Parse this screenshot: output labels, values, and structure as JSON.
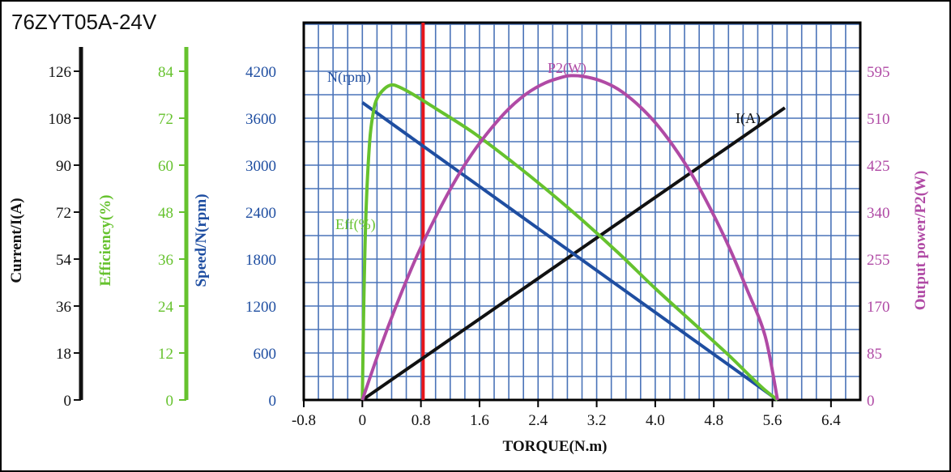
{
  "title": "76ZYT05A-24V",
  "colors": {
    "current": "#111111",
    "efficiency": "#66c22e",
    "speed": "#1f4ea1",
    "power": "#b04aa5",
    "grid": "#4a73b8",
    "marker": "#e8161b",
    "frame": "#000000"
  },
  "chart_data": {
    "type": "line",
    "grid": true,
    "xlabel": "TORQUE(N.m)",
    "xlim": [
      -0.8,
      6.8
    ],
    "x_ticks": [
      "-0.8",
      "0",
      "0.8",
      "1.6",
      "2.4",
      "3.2",
      "4.0",
      "4.8",
      "5.6",
      "6.4"
    ],
    "x_tick_values": [
      -0.8,
      0,
      0.8,
      1.6,
      2.4,
      3.2,
      4.0,
      4.8,
      5.6,
      6.4
    ],
    "marker_line_x": 0.83,
    "axes": [
      {
        "key": "current",
        "label": "Current/I(A)",
        "ticks": [
          "0",
          "18",
          "36",
          "54",
          "72",
          "90",
          "108",
          "126"
        ],
        "range": [
          0,
          126
        ],
        "color": "#111111"
      },
      {
        "key": "efficiency",
        "label": "Efficiency(%)",
        "ticks": [
          "0",
          "12",
          "24",
          "36",
          "48",
          "60",
          "72",
          "84"
        ],
        "range": [
          0,
          84
        ],
        "color": "#66c22e"
      },
      {
        "key": "speed",
        "label": "Speed/N(rpm)",
        "ticks": [
          "0",
          "600",
          "1200",
          "1800",
          "2400",
          "3000",
          "3600",
          "4200"
        ],
        "range": [
          0,
          4200
        ],
        "color": "#1f4ea1"
      },
      {
        "key": "power",
        "label": "Output power/P2(W)",
        "ticks": [
          "0",
          "85",
          "170",
          "255",
          "340",
          "425",
          "510",
          "595"
        ],
        "range": [
          0,
          595
        ],
        "color": "#b04aa5"
      }
    ],
    "series": [
      {
        "name": "I(A)",
        "axis": "current",
        "color": "#111111",
        "x": [
          0,
          5.77
        ],
        "y": [
          0,
          112
        ]
      },
      {
        "name": "N(rpm)",
        "axis": "speed",
        "color": "#1f4ea1",
        "x": [
          0,
          5.67
        ],
        "y": [
          3800,
          0
        ]
      },
      {
        "name": "Eff(%)",
        "axis": "efficiency",
        "color": "#66c22e",
        "x": [
          0,
          0.02,
          0.05,
          0.1,
          0.15,
          0.2,
          0.3,
          0.4,
          0.5,
          0.7,
          1.0,
          1.5,
          2.0,
          2.5,
          3.0,
          3.5,
          4.0,
          4.5,
          5.0,
          5.3,
          5.5,
          5.67
        ],
        "y": [
          0,
          25,
          48,
          66,
          73.5,
          77,
          79.5,
          80.5,
          80,
          78,
          74.5,
          68.5,
          61.5,
          54,
          46,
          37.5,
          28.5,
          20,
          11.5,
          6,
          2.5,
          0
        ]
      },
      {
        "name": "P2(W)",
        "axis": "power",
        "color": "#b04aa5",
        "x": [
          0,
          0.25,
          0.5,
          0.75,
          1.0,
          1.25,
          1.5,
          1.75,
          2.0,
          2.25,
          2.5,
          2.75,
          2.84,
          3.0,
          3.25,
          3.5,
          3.75,
          4.0,
          4.25,
          4.5,
          4.75,
          5.0,
          5.25,
          5.5,
          5.67
        ],
        "y": [
          0,
          96,
          183,
          262,
          331,
          393,
          446,
          490,
          527,
          555,
          574,
          585,
          587,
          586,
          578,
          562,
          536,
          502,
          459,
          408,
          347,
          279,
          201,
          116,
          0
        ]
      }
    ]
  }
}
